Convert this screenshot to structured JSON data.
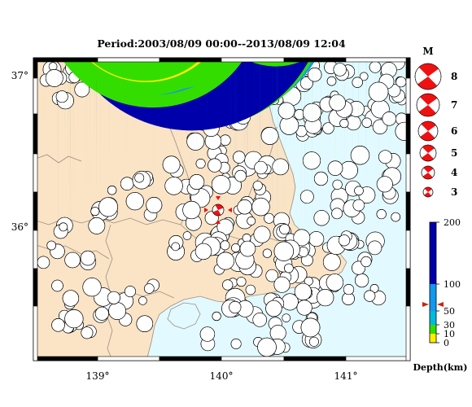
{
  "title": "Period:2003/08/09 00:00--2013/08/09 12:04",
  "map": {
    "lon_ticks": [
      "139°",
      "140°",
      "141°"
    ],
    "lat_ticks": [
      "37°",
      "36°"
    ],
    "colors": {
      "land": "#fbe4c6",
      "sea": "#e2faff",
      "border": "#9a8d82",
      "frame": "#000000"
    }
  },
  "magnitude_legend": {
    "title": "M",
    "labels": [
      "8",
      "7",
      "6",
      "5",
      "4",
      "3"
    ],
    "color": "#ee1111"
  },
  "depth_scale": {
    "title": "Depth(km)",
    "tick_labels": [
      "200",
      "100",
      "50",
      "30",
      "10",
      "0"
    ],
    "colors": [
      "#ffee00",
      "#33dd00",
      "#00bbdd",
      "#1199ee",
      "#0000aa"
    ],
    "pointer_value": "70"
  },
  "mainshock": {
    "color": "#ee1111"
  }
}
